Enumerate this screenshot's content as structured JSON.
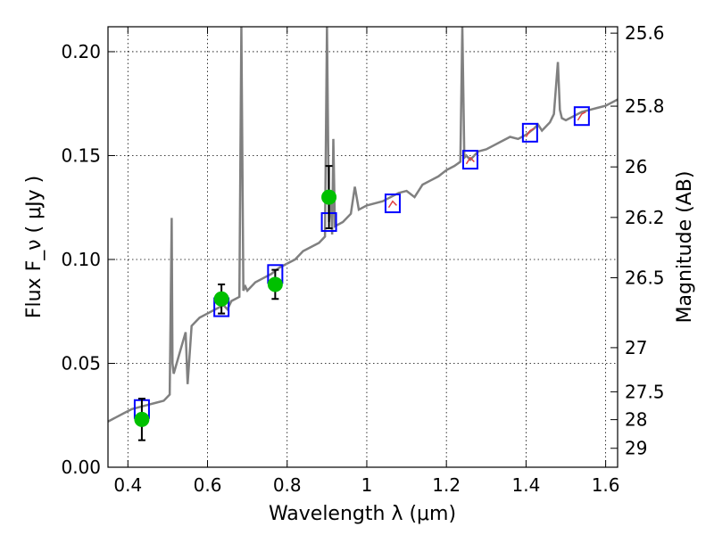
{
  "chart_data": {
    "type": "line",
    "xlabel": "Wavelength  λ (μm)",
    "ylabel": "Flux  F_ν  ( μJy )",
    "y2label": "Magnitude (AB)",
    "xlim": [
      0.35,
      1.63
    ],
    "ylim": [
      0.0,
      0.212
    ],
    "x_ticks": [
      0.4,
      0.6,
      0.8,
      1.0,
      1.2,
      1.4,
      1.6
    ],
    "x_tick_labels": [
      "0.4",
      "0.6",
      "0.8",
      "1",
      "1.2",
      "1.4",
      "1.6"
    ],
    "y_ticks": [
      0.0,
      0.05,
      0.1,
      0.15,
      0.2
    ],
    "y_tick_labels": [
      "0.00",
      "0.05",
      "0.10",
      "0.15",
      "0.20"
    ],
    "mag_ticks": [
      25.6,
      25.8,
      26,
      26.2,
      26.5,
      27,
      27.5,
      28,
      29
    ],
    "mag_tick_labels": [
      "25.6",
      "25.8",
      "26",
      "26.2",
      "26.5",
      "27",
      "27.5",
      "28",
      "29"
    ],
    "grid": true,
    "colors": {
      "spectrum": "#808080",
      "model_box": "#0000ff",
      "observed": "#00c000",
      "errorbar": "#000000",
      "hst_spectrum": "#e04040"
    },
    "spectrum": {
      "x": [
        0.35,
        0.37,
        0.39,
        0.41,
        0.43,
        0.45,
        0.47,
        0.49,
        0.505,
        0.51,
        0.512,
        0.515,
        0.53,
        0.545,
        0.55,
        0.56,
        0.57,
        0.58,
        0.6,
        0.62,
        0.64,
        0.65,
        0.66,
        0.68,
        0.685,
        0.69,
        0.695,
        0.7,
        0.72,
        0.74,
        0.76,
        0.78,
        0.8,
        0.82,
        0.84,
        0.86,
        0.88,
        0.895,
        0.9,
        0.905,
        0.91,
        0.913,
        0.916,
        0.92,
        0.94,
        0.96,
        0.97,
        0.98,
        1.0,
        1.02,
        1.04,
        1.06,
        1.08,
        1.1,
        1.12,
        1.14,
        1.16,
        1.18,
        1.2,
        1.22,
        1.235,
        1.24,
        1.245,
        1.25,
        1.26,
        1.28,
        1.3,
        1.32,
        1.34,
        1.36,
        1.38,
        1.4,
        1.42,
        1.43,
        1.44,
        1.46,
        1.47,
        1.48,
        1.485,
        1.49,
        1.5,
        1.52,
        1.54,
        1.56,
        1.58,
        1.6,
        1.63
      ],
      "y": [
        0.022,
        0.024,
        0.026,
        0.028,
        0.029,
        0.03,
        0.031,
        0.032,
        0.035,
        0.12,
        0.05,
        0.045,
        0.055,
        0.065,
        0.04,
        0.068,
        0.07,
        0.072,
        0.074,
        0.076,
        0.078,
        0.076,
        0.08,
        0.082,
        0.212,
        0.085,
        0.087,
        0.085,
        0.089,
        0.091,
        0.093,
        0.096,
        0.098,
        0.1,
        0.104,
        0.106,
        0.108,
        0.111,
        0.212,
        0.118,
        0.13,
        0.112,
        0.158,
        0.116,
        0.118,
        0.122,
        0.135,
        0.124,
        0.126,
        0.127,
        0.128,
        0.13,
        0.132,
        0.133,
        0.13,
        0.136,
        0.138,
        0.14,
        0.143,
        0.145,
        0.147,
        0.212,
        0.149,
        0.15,
        0.148,
        0.152,
        0.153,
        0.155,
        0.157,
        0.159,
        0.158,
        0.16,
        0.163,
        0.165,
        0.162,
        0.166,
        0.17,
        0.195,
        0.172,
        0.168,
        0.167,
        0.169,
        0.171,
        0.172,
        0.173,
        0.174,
        0.177
      ]
    },
    "model_points": {
      "x": [
        0.435,
        0.635,
        0.77,
        0.905,
        1.065,
        1.26,
        1.41,
        1.54
      ],
      "y": [
        0.028,
        0.077,
        0.093,
        0.118,
        0.127,
        0.148,
        0.161,
        0.169
      ]
    },
    "observed_points": {
      "x": [
        0.435,
        0.635,
        0.77,
        0.905
      ],
      "y": [
        0.023,
        0.081,
        0.088,
        0.13
      ],
      "err_low": [
        0.01,
        0.007,
        0.007,
        0.015
      ],
      "err_high": [
        0.01,
        0.007,
        0.007,
        0.015
      ]
    },
    "hst_segments": [
      {
        "x": [
          1.055,
          1.065,
          1.075
        ],
        "y": [
          0.125,
          0.128,
          0.126
        ]
      },
      {
        "x": [
          1.25,
          1.26,
          1.27
        ],
        "y": [
          0.146,
          0.149,
          0.147
        ]
      },
      {
        "x": [
          1.4,
          1.41,
          1.42
        ],
        "y": [
          0.159,
          0.162,
          0.163
        ]
      },
      {
        "x": [
          1.53,
          1.54,
          1.55
        ],
        "y": [
          0.167,
          0.17,
          0.171
        ]
      }
    ]
  }
}
